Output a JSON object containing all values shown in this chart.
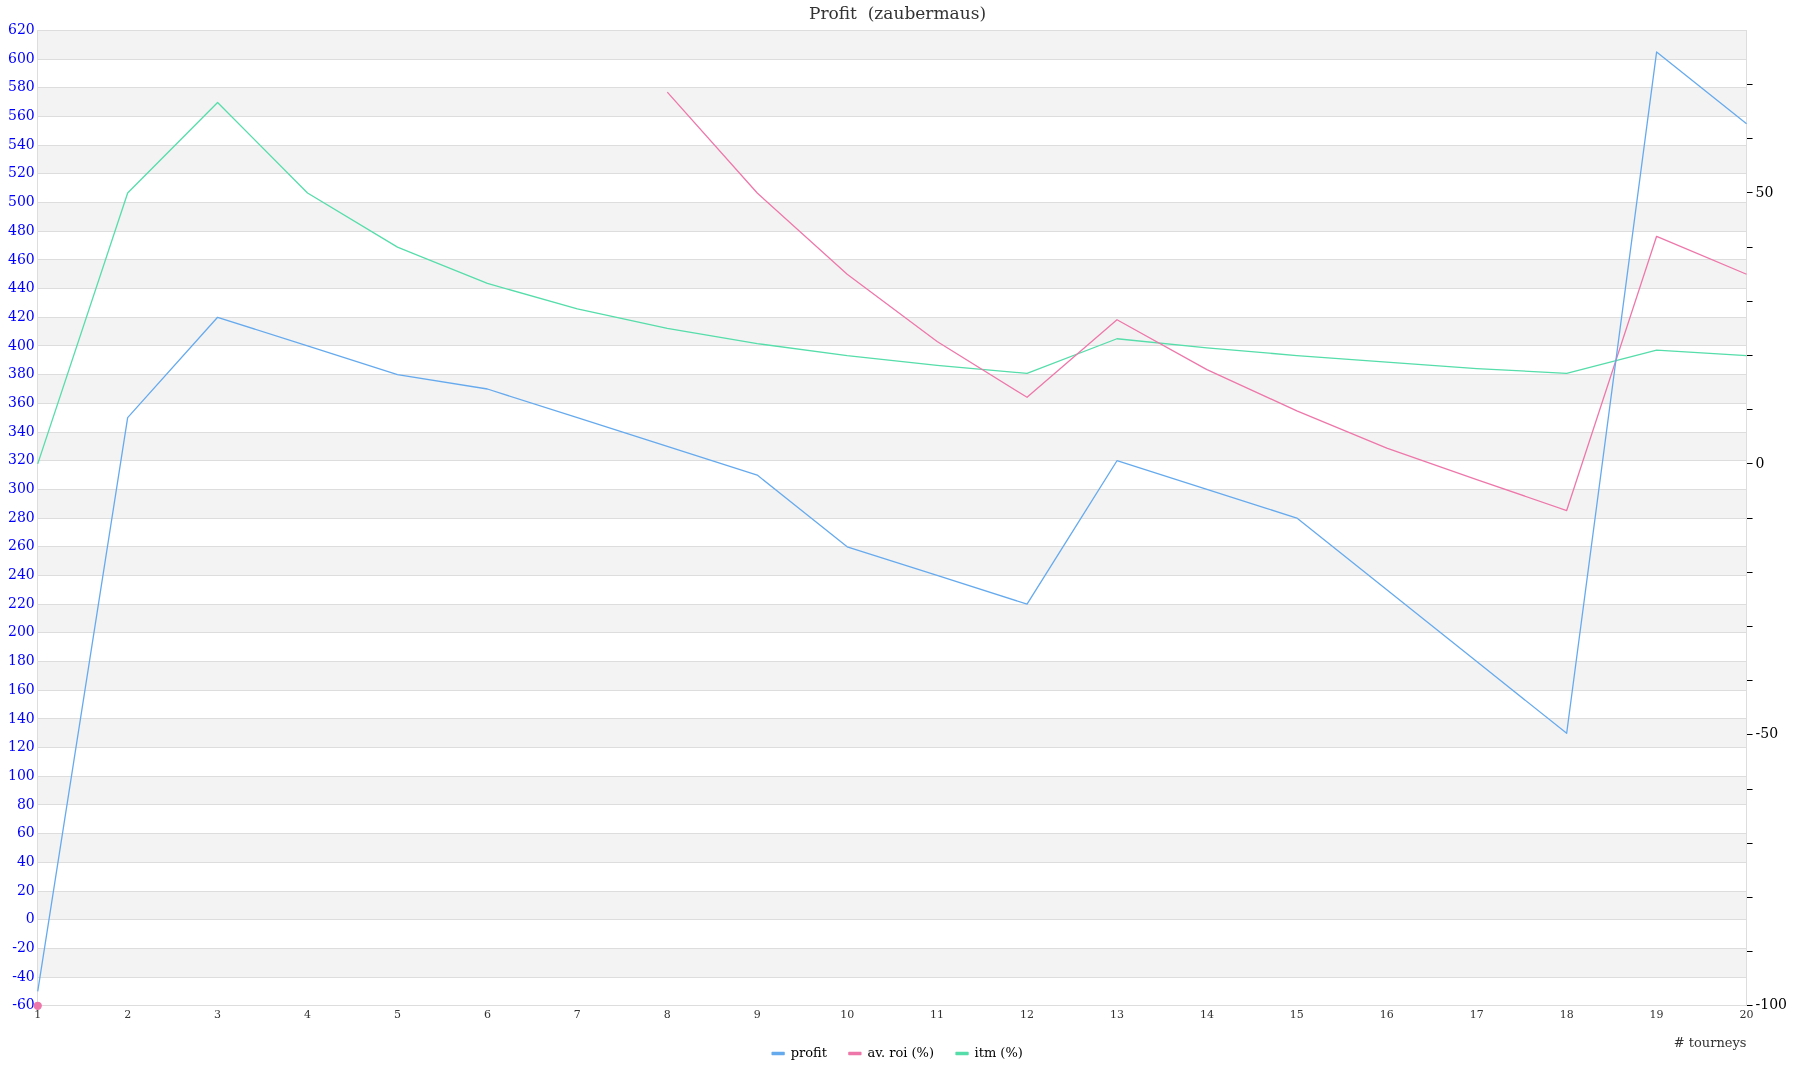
{
  "chart_data": {
    "type": "line",
    "title": "Profit  (zaubermaus)",
    "xlabel": "# tourneys",
    "categories": [
      "1",
      "2",
      "3",
      "4",
      "5",
      "6",
      "7",
      "8",
      "9",
      "10",
      "11",
      "12",
      "13",
      "14",
      "15",
      "16",
      "17",
      "18",
      "19",
      "20"
    ],
    "series": [
      {
        "name": "profit",
        "color": "#66aaee",
        "values": [
          -50,
          350,
          420,
          400,
          380,
          370,
          350,
          330,
          310,
          260,
          240,
          220,
          320,
          300,
          280,
          230,
          180,
          130,
          605,
          555
        ]
      },
      {
        "name": "av. roi (%)",
        "color": "#ee77aa",
        "axis": "y2",
        "values": [
          -100,
          null,
          null,
          null,
          null,
          null,
          null,
          68.6,
          50,
          35,
          22.6,
          12.3,
          26.6,
          17.4,
          9.8,
          2.9,
          -2.9,
          -8.6,
          42,
          35
        ]
      },
      {
        "name": "itm (%)",
        "color": "#55ddaa",
        "axis": "y2",
        "values": [
          0,
          50,
          66.7,
          50,
          40,
          33.3,
          28.6,
          25,
          22.2,
          20,
          18.2,
          16.7,
          23.1,
          21.4,
          20,
          18.8,
          17.6,
          16.7,
          21,
          20
        ]
      }
    ],
    "ylim": [
      -60,
      620
    ],
    "yticks": [
      -60,
      -40,
      -20,
      0,
      20,
      40,
      60,
      80,
      100,
      120,
      140,
      160,
      180,
      200,
      220,
      240,
      260,
      280,
      300,
      320,
      340,
      360,
      380,
      400,
      420,
      440,
      460,
      480,
      500,
      520,
      540,
      560,
      580,
      600,
      620
    ],
    "y2lim": [
      -100,
      80
    ],
    "y2ticks": [
      -100,
      {
        "value": -90,
        "label": null
      },
      {
        "value": -80,
        "label": null
      },
      {
        "value": -70,
        "label": null
      },
      {
        "value": -60,
        "label": null
      },
      -50,
      {
        "value": -40,
        "label": null
      },
      {
        "value": -30,
        "label": null
      },
      {
        "value": -20,
        "label": null
      },
      {
        "value": -10,
        "label": null
      },
      0,
      {
        "value": 10,
        "label": null
      },
      {
        "value": 20,
        "label": null
      },
      {
        "value": 30,
        "label": null
      },
      {
        "value": 40,
        "label": null
      },
      50,
      {
        "value": 60,
        "label": null
      },
      {
        "value": 70,
        "label": null
      }
    ],
    "grid": "y",
    "legend": "bottom",
    "marker": "none",
    "line_style": "solid"
  }
}
